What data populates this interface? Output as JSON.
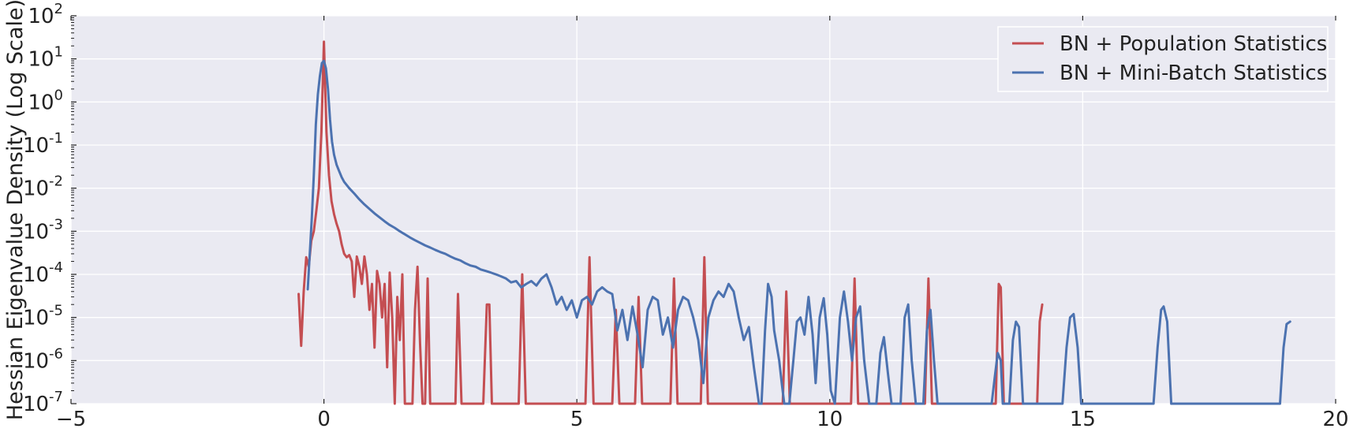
{
  "chart_data": {
    "type": "line",
    "title": "",
    "xlabel": "",
    "ylabel": "Hessian Eigenvalue Density (Log Scale)",
    "y_scale": "log",
    "xlim": [
      -5,
      20
    ],
    "ylim": [
      1e-07,
      100
    ],
    "grid": true,
    "legend_position": "top-right",
    "x_ticks": [
      -5,
      0,
      5,
      10,
      15,
      20
    ],
    "x_tick_labels": [
      "−5",
      "0",
      "5",
      "10",
      "15",
      "20"
    ],
    "y_ticks": [
      {
        "value": 1e-07,
        "base": "10",
        "exp": "-7"
      },
      {
        "value": 1e-06,
        "base": "10",
        "exp": "-6"
      },
      {
        "value": 1e-05,
        "base": "10",
        "exp": "-5"
      },
      {
        "value": 0.0001,
        "base": "10",
        "exp": "-4"
      },
      {
        "value": 0.001,
        "base": "10",
        "exp": "-3"
      },
      {
        "value": 0.01,
        "base": "10",
        "exp": "-2"
      },
      {
        "value": 0.1,
        "base": "10",
        "exp": "-1"
      },
      {
        "value": 1,
        "base": "10",
        "exp": "0"
      },
      {
        "value": 10,
        "base": "10",
        "exp": "1"
      },
      {
        "value": 100,
        "base": "10",
        "exp": "2"
      }
    ],
    "colors": {
      "background": "#eaeaf2",
      "grid": "#ffffff",
      "population": "#c44e52",
      "minibatch": "#4c72b0"
    },
    "series": [
      {
        "name": "BN + Population Statistics",
        "color": "#c44e52",
        "points": [
          [
            -0.5,
            3.5e-05
          ],
          [
            -0.45,
            2.2e-06
          ],
          [
            -0.4,
            4e-05
          ],
          [
            -0.35,
            0.00025
          ],
          [
            -0.3,
            0.00015
          ],
          [
            -0.25,
            0.0006
          ],
          [
            -0.2,
            0.001
          ],
          [
            -0.15,
            0.003
          ],
          [
            -0.1,
            0.01
          ],
          [
            -0.05,
            0.2
          ],
          [
            0.0,
            25
          ],
          [
            0.05,
            0.2
          ],
          [
            0.1,
            0.02
          ],
          [
            0.15,
            0.005
          ],
          [
            0.2,
            0.0025
          ],
          [
            0.25,
            0.0015
          ],
          [
            0.3,
            0.001
          ],
          [
            0.35,
            0.0005
          ],
          [
            0.4,
            0.0003
          ],
          [
            0.45,
            0.00025
          ],
          [
            0.5,
            0.00028
          ],
          [
            0.55,
            0.0002
          ],
          [
            0.6,
            3e-05
          ],
          [
            0.65,
            0.00026
          ],
          [
            0.7,
            0.00015
          ],
          [
            0.75,
            6e-05
          ],
          [
            0.8,
            0.00026
          ],
          [
            0.85,
            0.0001
          ],
          [
            0.9,
            1.5e-05
          ],
          [
            0.95,
            6e-05
          ],
          [
            1.0,
            2e-06
          ],
          [
            1.05,
            0.00012
          ],
          [
            1.1,
            6e-05
          ],
          [
            1.15,
            1e-05
          ],
          [
            1.2,
            6e-05
          ],
          [
            1.25,
            7e-07
          ],
          [
            1.3,
            0.00011
          ],
          [
            1.35,
            1e-05
          ],
          [
            1.4,
            1e-07
          ],
          [
            1.45,
            3e-05
          ],
          [
            1.5,
            3e-06
          ],
          [
            1.55,
            0.0001
          ],
          [
            1.6,
            1e-07
          ],
          [
            1.7,
            1e-07
          ],
          [
            1.75,
            1e-07
          ],
          [
            1.8,
            1.5e-05
          ],
          [
            1.85,
            0.00015
          ],
          [
            1.9,
            2.5e-06
          ],
          [
            1.95,
            1e-07
          ],
          [
            2.0,
            1e-07
          ],
          [
            2.05,
            8e-05
          ],
          [
            2.1,
            1e-07
          ],
          [
            2.3,
            1e-07
          ],
          [
            2.6,
            1e-07
          ],
          [
            2.65,
            3.5e-05
          ],
          [
            2.72,
            1e-07
          ],
          [
            3.15,
            1e-07
          ],
          [
            3.22,
            2e-05
          ],
          [
            3.27,
            2e-05
          ],
          [
            3.32,
            1e-07
          ],
          [
            3.85,
            1e-07
          ],
          [
            3.92,
            0.0001
          ],
          [
            3.99,
            1e-07
          ],
          [
            5.17,
            1e-07
          ],
          [
            5.25,
            0.00025
          ],
          [
            5.33,
            1e-07
          ],
          [
            5.7,
            1e-07
          ],
          [
            5.77,
            1.5e-05
          ],
          [
            5.84,
            1e-07
          ],
          [
            6.15,
            1e-07
          ],
          [
            6.22,
            3e-05
          ],
          [
            6.29,
            1e-07
          ],
          [
            6.85,
            1e-07
          ],
          [
            6.92,
            8e-05
          ],
          [
            6.99,
            1e-07
          ],
          [
            7.45,
            1e-07
          ],
          [
            7.52,
            0.00025
          ],
          [
            7.59,
            1e-07
          ],
          [
            9.07,
            1e-07
          ],
          [
            9.14,
            4e-05
          ],
          [
            9.21,
            1e-07
          ],
          [
            10.42,
            1e-07
          ],
          [
            10.49,
            8e-05
          ],
          [
            10.56,
            1e-07
          ],
          [
            11.88,
            1e-07
          ],
          [
            11.95,
            8e-05
          ],
          [
            12.02,
            1e-07
          ],
          [
            13.28,
            1e-07
          ],
          [
            13.34,
            6e-05
          ],
          [
            13.38,
            5e-05
          ],
          [
            13.44,
            1e-07
          ],
          [
            14.1,
            1e-07
          ],
          [
            14.15,
            8e-06
          ],
          [
            14.2,
            2e-05
          ]
        ]
      },
      {
        "name": "BN + Mini-Batch Statistics",
        "color": "#4c72b0",
        "points": [
          [
            -0.32,
            4.5e-05
          ],
          [
            -0.28,
            0.0003
          ],
          [
            -0.24,
            0.002
          ],
          [
            -0.2,
            0.02
          ],
          [
            -0.16,
            0.3
          ],
          [
            -0.12,
            1.5
          ],
          [
            -0.08,
            4
          ],
          [
            -0.04,
            8
          ],
          [
            0.0,
            9
          ],
          [
            0.04,
            6
          ],
          [
            0.08,
            2
          ],
          [
            0.12,
            0.4
          ],
          [
            0.16,
            0.12
          ],
          [
            0.2,
            0.06
          ],
          [
            0.25,
            0.035
          ],
          [
            0.3,
            0.025
          ],
          [
            0.35,
            0.018
          ],
          [
            0.4,
            0.014
          ],
          [
            0.5,
            0.01
          ],
          [
            0.6,
            0.0075
          ],
          [
            0.7,
            0.0055
          ],
          [
            0.8,
            0.0042
          ],
          [
            0.9,
            0.0033
          ],
          [
            1.0,
            0.0026
          ],
          [
            1.1,
            0.0021
          ],
          [
            1.2,
            0.0017
          ],
          [
            1.3,
            0.0014
          ],
          [
            1.4,
            0.0012
          ],
          [
            1.5,
            0.001
          ],
          [
            1.6,
            0.00085
          ],
          [
            1.7,
            0.00072
          ],
          [
            1.8,
            0.00062
          ],
          [
            1.9,
            0.00054
          ],
          [
            2.0,
            0.00047
          ],
          [
            2.1,
            0.00042
          ],
          [
            2.2,
            0.00037
          ],
          [
            2.3,
            0.00033
          ],
          [
            2.4,
            0.0003
          ],
          [
            2.5,
            0.00026
          ],
          [
            2.6,
            0.00023
          ],
          [
            2.7,
            0.00021
          ],
          [
            2.8,
            0.00018
          ],
          [
            2.9,
            0.00016
          ],
          [
            3.0,
            0.00015
          ],
          [
            3.1,
            0.00013
          ],
          [
            3.2,
            0.00012
          ],
          [
            3.3,
            0.00011
          ],
          [
            3.4,
            0.0001
          ],
          [
            3.5,
            9e-05
          ],
          [
            3.6,
            8e-05
          ],
          [
            3.7,
            6.5e-05
          ],
          [
            3.8,
            7e-05
          ],
          [
            3.9,
            5e-05
          ],
          [
            4.0,
            6e-05
          ],
          [
            4.1,
            7e-05
          ],
          [
            4.2,
            5.5e-05
          ],
          [
            4.3,
            8e-05
          ],
          [
            4.4,
            0.0001
          ],
          [
            4.5,
            5e-05
          ],
          [
            4.6,
            2e-05
          ],
          [
            4.7,
            3e-05
          ],
          [
            4.8,
            1.5e-05
          ],
          [
            4.9,
            2.5e-05
          ],
          [
            5.0,
            1e-05
          ],
          [
            5.1,
            2.5e-05
          ],
          [
            5.2,
            3e-05
          ],
          [
            5.3,
            2e-05
          ],
          [
            5.4,
            4e-05
          ],
          [
            5.5,
            5e-05
          ],
          [
            5.6,
            4e-05
          ],
          [
            5.7,
            3.5e-05
          ],
          [
            5.8,
            5e-06
          ],
          [
            5.9,
            1.5e-05
          ],
          [
            6.0,
            3e-06
          ],
          [
            6.1,
            1.8e-05
          ],
          [
            6.2,
            4e-06
          ],
          [
            6.3,
            7e-07
          ],
          [
            6.4,
            1.5e-05
          ],
          [
            6.5,
            3e-05
          ],
          [
            6.6,
            2.5e-05
          ],
          [
            6.7,
            4e-06
          ],
          [
            6.8,
            1e-05
          ],
          [
            6.9,
            2e-06
          ],
          [
            7.0,
            1.5e-05
          ],
          [
            7.1,
            3e-05
          ],
          [
            7.2,
            2.5e-05
          ],
          [
            7.3,
            1e-05
          ],
          [
            7.4,
            3e-06
          ],
          [
            7.5,
            3e-07
          ],
          [
            7.6,
            1e-05
          ],
          [
            7.7,
            2.5e-05
          ],
          [
            7.8,
            4e-05
          ],
          [
            7.9,
            3e-05
          ],
          [
            8.0,
            6e-05
          ],
          [
            8.1,
            4e-05
          ],
          [
            8.2,
            1e-05
          ],
          [
            8.3,
            3e-06
          ],
          [
            8.4,
            6e-06
          ],
          [
            8.5,
            7e-07
          ],
          [
            8.6,
            1e-07
          ],
          [
            8.65,
            1e-07
          ],
          [
            8.72,
            5e-06
          ],
          [
            8.78,
            6e-05
          ],
          [
            8.85,
            3e-05
          ],
          [
            8.9,
            5e-06
          ],
          [
            9.0,
            1e-06
          ],
          [
            9.05,
            3e-07
          ],
          [
            9.1,
            1e-07
          ],
          [
            9.2,
            1e-07
          ],
          [
            9.28,
            1e-06
          ],
          [
            9.35,
            8e-06
          ],
          [
            9.42,
            1e-05
          ],
          [
            9.5,
            4e-06
          ],
          [
            9.58,
            3e-05
          ],
          [
            9.66,
            4e-06
          ],
          [
            9.72,
            3e-07
          ],
          [
            9.8,
            1e-05
          ],
          [
            9.88,
            2.8e-05
          ],
          [
            9.95,
            4e-06
          ],
          [
            10.02,
            2e-07
          ],
          [
            10.1,
            1e-07
          ],
          [
            10.2,
            1e-05
          ],
          [
            10.28,
            4e-05
          ],
          [
            10.36,
            8e-06
          ],
          [
            10.44,
            1e-06
          ],
          [
            10.52,
            1e-05
          ],
          [
            10.6,
            1.8e-05
          ],
          [
            10.68,
            1e-06
          ],
          [
            10.78,
            1e-07
          ],
          [
            10.92,
            1e-07
          ],
          [
            11.0,
            1.5e-06
          ],
          [
            11.07,
            3.5e-06
          ],
          [
            11.15,
            5e-07
          ],
          [
            11.22,
            1e-07
          ],
          [
            11.4,
            1e-07
          ],
          [
            11.48,
            1e-05
          ],
          [
            11.55,
            2e-05
          ],
          [
            11.62,
            1e-06
          ],
          [
            11.7,
            1e-07
          ],
          [
            11.85,
            1e-07
          ],
          [
            11.92,
            5e-06
          ],
          [
            11.99,
            1.5e-05
          ],
          [
            12.06,
            1e-06
          ],
          [
            12.13,
            1e-07
          ],
          [
            13.2,
            1e-07
          ],
          [
            13.26,
            4e-07
          ],
          [
            13.32,
            1.5e-06
          ],
          [
            13.38,
            1e-06
          ],
          [
            13.42,
            1e-07
          ],
          [
            13.55,
            1e-07
          ],
          [
            13.62,
            3e-06
          ],
          [
            13.68,
            8e-06
          ],
          [
            13.74,
            6e-06
          ],
          [
            13.82,
            1e-07
          ],
          [
            14.6,
            1e-07
          ],
          [
            14.68,
            2e-06
          ],
          [
            14.75,
            1e-05
          ],
          [
            14.82,
            1.2e-05
          ],
          [
            14.9,
            2e-06
          ],
          [
            14.97,
            1e-07
          ],
          [
            16.4,
            1e-07
          ],
          [
            16.48,
            2e-06
          ],
          [
            16.55,
            1.5e-05
          ],
          [
            16.6,
            1.8e-05
          ],
          [
            16.67,
            8e-06
          ],
          [
            16.75,
            1e-07
          ],
          [
            18.9,
            1e-07
          ],
          [
            18.97,
            2e-06
          ],
          [
            19.03,
            7e-06
          ],
          [
            19.1,
            8e-06
          ]
        ]
      }
    ]
  }
}
